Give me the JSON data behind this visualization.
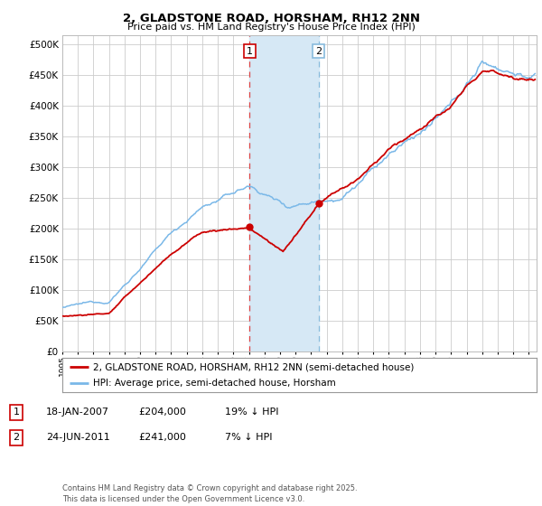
{
  "title": "2, GLADSTONE ROAD, HORSHAM, RH12 2NN",
  "subtitle": "Price paid vs. HM Land Registry's House Price Index (HPI)",
  "ytick_values": [
    0,
    50000,
    100000,
    150000,
    200000,
    250000,
    300000,
    350000,
    400000,
    450000,
    500000
  ],
  "ylim": [
    0,
    515000
  ],
  "xlim_start": 1995.0,
  "xlim_end": 2025.5,
  "hpi_color": "#7ab8e8",
  "price_color": "#cc0000",
  "highlight_color": "#d6e8f5",
  "transaction1_x": 2007.05,
  "transaction1_y": 204000,
  "transaction2_x": 2011.48,
  "transaction2_y": 241000,
  "legend_line1": "2, GLADSTONE ROAD, HORSHAM, RH12 2NN (semi-detached house)",
  "legend_line2": "HPI: Average price, semi-detached house, Horsham",
  "table_row1": [
    "1",
    "18-JAN-2007",
    "£204,000",
    "19% ↓ HPI"
  ],
  "table_row2": [
    "2",
    "24-JUN-2011",
    "£241,000",
    "7% ↓ HPI"
  ],
  "footnote": "Contains HM Land Registry data © Crown copyright and database right 2025.\nThis data is licensed under the Open Government Licence v3.0.",
  "bg_color": "#ffffff",
  "grid_color": "#cccccc"
}
